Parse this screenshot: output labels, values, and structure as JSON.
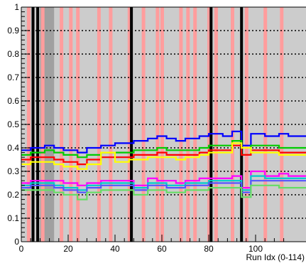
{
  "chart_data": {
    "type": "line",
    "title": "",
    "xlabel": "Run Idx (0-114)",
    "ylabel": "",
    "xlim": [
      0,
      114
    ],
    "ylim": [
      0,
      1
    ],
    "x_ticks": [
      0,
      20,
      40,
      60,
      80,
      100
    ],
    "x_tick_labels": [
      "0",
      "20",
      "40",
      "60",
      "80",
      "100"
    ],
    "y_ticks": [
      0,
      0.1,
      0.2,
      0.3,
      0.4,
      0.5,
      0.6,
      0.7,
      0.8,
      0.9,
      1
    ],
    "y_tick_labels": [
      "0",
      "0.1",
      "0.2",
      "0.3",
      "0.4",
      "0.5",
      "0.6",
      "0.7",
      "0.8",
      "0.9",
      "1"
    ],
    "grid": "dotted-horizontal",
    "shaded_band": {
      "x_start": 8,
      "x_end": 14,
      "color": "#a0a0a0"
    },
    "black_markers_x": [
      5,
      7,
      47,
      81,
      94
    ],
    "pink_markers_x": [
      3,
      9,
      17,
      21,
      24,
      33,
      38,
      46,
      52,
      58,
      60,
      68,
      71,
      74,
      80,
      83,
      90,
      96,
      104,
      111
    ],
    "series": [
      {
        "color": "#0000ff",
        "points": [
          [
            0,
            0.39
          ],
          [
            4,
            0.4
          ],
          [
            6,
            0.4
          ],
          [
            10,
            0.41
          ],
          [
            14,
            0.4
          ],
          [
            18,
            0.39
          ],
          [
            24,
            0.38
          ],
          [
            28,
            0.4
          ],
          [
            34,
            0.41
          ],
          [
            40,
            0.42
          ],
          [
            46,
            0.42
          ],
          [
            48,
            0.43
          ],
          [
            54,
            0.44
          ],
          [
            58,
            0.45
          ],
          [
            62,
            0.44
          ],
          [
            66,
            0.43
          ],
          [
            70,
            0.44
          ],
          [
            76,
            0.45
          ],
          [
            80,
            0.46
          ],
          [
            86,
            0.45
          ],
          [
            90,
            0.47
          ],
          [
            94,
            0.41
          ],
          [
            98,
            0.46
          ],
          [
            104,
            0.45
          ],
          [
            110,
            0.46
          ],
          [
            114,
            0.45
          ]
        ]
      },
      {
        "color": "#00cc00",
        "points": [
          [
            0,
            0.37
          ],
          [
            4,
            0.38
          ],
          [
            6,
            0.38
          ],
          [
            10,
            0.39
          ],
          [
            14,
            0.38
          ],
          [
            18,
            0.37
          ],
          [
            24,
            0.36
          ],
          [
            28,
            0.37
          ],
          [
            34,
            0.38
          ],
          [
            40,
            0.38
          ],
          [
            46,
            0.38
          ],
          [
            48,
            0.39
          ],
          [
            54,
            0.39
          ],
          [
            58,
            0.4
          ],
          [
            62,
            0.39
          ],
          [
            66,
            0.39
          ],
          [
            70,
            0.39
          ],
          [
            76,
            0.4
          ],
          [
            80,
            0.41
          ],
          [
            86,
            0.41
          ],
          [
            90,
            0.43
          ],
          [
            94,
            0.37
          ],
          [
            98,
            0.41
          ],
          [
            104,
            0.41
          ],
          [
            110,
            0.4
          ],
          [
            114,
            0.4
          ]
        ]
      },
      {
        "color": "#ff0000",
        "points": [
          [
            0,
            0.35
          ],
          [
            4,
            0.36
          ],
          [
            6,
            0.36
          ],
          [
            10,
            0.36
          ],
          [
            14,
            0.35
          ],
          [
            18,
            0.34
          ],
          [
            24,
            0.33
          ],
          [
            28,
            0.35
          ],
          [
            34,
            0.36
          ],
          [
            40,
            0.36
          ],
          [
            46,
            0.36
          ],
          [
            48,
            0.37
          ],
          [
            54,
            0.37
          ],
          [
            58,
            0.38
          ],
          [
            62,
            0.37
          ],
          [
            66,
            0.37
          ],
          [
            70,
            0.37
          ],
          [
            76,
            0.38
          ],
          [
            80,
            0.39
          ],
          [
            86,
            0.39
          ],
          [
            90,
            0.41
          ],
          [
            94,
            0.37
          ],
          [
            98,
            0.39
          ],
          [
            104,
            0.39
          ],
          [
            110,
            0.38
          ],
          [
            114,
            0.38
          ]
        ]
      },
      {
        "color": "#ffff00",
        "points": [
          [
            0,
            0.33
          ],
          [
            4,
            0.34
          ],
          [
            6,
            0.34
          ],
          [
            10,
            0.34
          ],
          [
            14,
            0.33
          ],
          [
            18,
            0.32
          ],
          [
            24,
            0.31
          ],
          [
            28,
            0.33
          ],
          [
            34,
            0.38
          ],
          [
            40,
            0.34
          ],
          [
            46,
            0.35
          ],
          [
            48,
            0.35
          ],
          [
            54,
            0.36
          ],
          [
            58,
            0.36
          ],
          [
            62,
            0.36
          ],
          [
            66,
            0.35
          ],
          [
            70,
            0.36
          ],
          [
            76,
            0.37
          ],
          [
            80,
            0.38
          ],
          [
            86,
            0.38
          ],
          [
            90,
            0.42
          ],
          [
            94,
            0.4
          ],
          [
            98,
            0.38
          ],
          [
            104,
            0.38
          ],
          [
            110,
            0.37
          ],
          [
            114,
            0.37
          ]
        ]
      },
      {
        "color": "#ff00ff",
        "points": [
          [
            0,
            0.25
          ],
          [
            4,
            0.26
          ],
          [
            6,
            0.26
          ],
          [
            10,
            0.26
          ],
          [
            14,
            0.26
          ],
          [
            18,
            0.25
          ],
          [
            24,
            0.24
          ],
          [
            28,
            0.25
          ],
          [
            34,
            0.26
          ],
          [
            40,
            0.26
          ],
          [
            46,
            0.26
          ],
          [
            48,
            0.24
          ],
          [
            54,
            0.27
          ],
          [
            58,
            0.26
          ],
          [
            62,
            0.26
          ],
          [
            66,
            0.25
          ],
          [
            70,
            0.26
          ],
          [
            76,
            0.27
          ],
          [
            80,
            0.27
          ],
          [
            86,
            0.27
          ],
          [
            90,
            0.28
          ],
          [
            94,
            0.23
          ],
          [
            98,
            0.3
          ],
          [
            104,
            0.28
          ],
          [
            110,
            0.29
          ],
          [
            114,
            0.28
          ]
        ]
      },
      {
        "color": "#00cccc",
        "points": [
          [
            0,
            0.24
          ],
          [
            4,
            0.25
          ],
          [
            6,
            0.25
          ],
          [
            10,
            0.25
          ],
          [
            14,
            0.24
          ],
          [
            18,
            0.23
          ],
          [
            24,
            0.22
          ],
          [
            28,
            0.24
          ],
          [
            34,
            0.25
          ],
          [
            40,
            0.25
          ],
          [
            46,
            0.25
          ],
          [
            48,
            0.23
          ],
          [
            54,
            0.25
          ],
          [
            58,
            0.25
          ],
          [
            62,
            0.24
          ],
          [
            66,
            0.24
          ],
          [
            70,
            0.25
          ],
          [
            76,
            0.25
          ],
          [
            80,
            0.26
          ],
          [
            86,
            0.26
          ],
          [
            90,
            0.26
          ],
          [
            94,
            0.22
          ],
          [
            98,
            0.28
          ],
          [
            104,
            0.27
          ],
          [
            110,
            0.27
          ],
          [
            114,
            0.27
          ]
        ]
      },
      {
        "color": "#5555ff",
        "points": [
          [
            0,
            0.23
          ],
          [
            4,
            0.24
          ],
          [
            6,
            0.24
          ],
          [
            10,
            0.24
          ],
          [
            14,
            0.23
          ],
          [
            18,
            0.22
          ],
          [
            24,
            0.21
          ],
          [
            28,
            0.23
          ],
          [
            34,
            0.24
          ],
          [
            40,
            0.24
          ],
          [
            46,
            0.24
          ],
          [
            48,
            0.22
          ],
          [
            54,
            0.24
          ],
          [
            58,
            0.24
          ],
          [
            62,
            0.23
          ],
          [
            66,
            0.23
          ],
          [
            70,
            0.24
          ],
          [
            76,
            0.24
          ],
          [
            80,
            0.25
          ],
          [
            86,
            0.25
          ],
          [
            90,
            0.25
          ],
          [
            94,
            0.21
          ],
          [
            98,
            0.26
          ],
          [
            104,
            0.26
          ],
          [
            110,
            0.26
          ],
          [
            114,
            0.26
          ]
        ]
      },
      {
        "color": "#66dd66",
        "points": [
          [
            0,
            0.22
          ],
          [
            4,
            0.22
          ],
          [
            6,
            0.22
          ],
          [
            10,
            0.22
          ],
          [
            14,
            0.21
          ],
          [
            18,
            0.2
          ],
          [
            24,
            0.18
          ],
          [
            28,
            0.21
          ],
          [
            34,
            0.22
          ],
          [
            40,
            0.22
          ],
          [
            46,
            0.22
          ],
          [
            48,
            0.2
          ],
          [
            54,
            0.22
          ],
          [
            58,
            0.22
          ],
          [
            62,
            0.21
          ],
          [
            66,
            0.21
          ],
          [
            70,
            0.22
          ],
          [
            76,
            0.22
          ],
          [
            80,
            0.23
          ],
          [
            86,
            0.23
          ],
          [
            90,
            0.23
          ],
          [
            94,
            0.19
          ],
          [
            98,
            0.24
          ],
          [
            104,
            0.24
          ],
          [
            110,
            0.23
          ],
          [
            114,
            0.23
          ]
        ]
      }
    ]
  }
}
